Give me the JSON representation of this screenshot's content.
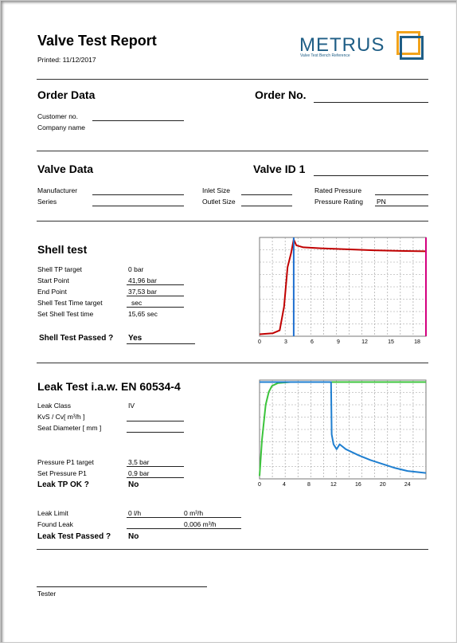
{
  "header": {
    "title": "Valve Test Report",
    "printed": "Printed: 11/12/2017",
    "logo_text": "METRUS",
    "logo_tagline": "Valve Test Bench Reference",
    "brand_color": "#1f5e86",
    "logo_square_color": "#f2a31b"
  },
  "order": {
    "title": "Order Data",
    "order_no_label": "Order No.",
    "customer_label": "Customer no.",
    "company_label": "Company name"
  },
  "valve": {
    "title": "Valve Data",
    "id_label": "Valve ID 1",
    "manufacturer_label": "Manufacturer",
    "series_label": "Series",
    "inlet_label": "Inlet Size",
    "outlet_label": "Outlet Size",
    "rated_pressure_label": "Rated Pressure",
    "pressure_rating_label": "Pressure Rating",
    "pressure_rating_value": "PN"
  },
  "shell": {
    "title": "Shell test",
    "rows": [
      {
        "label": "Shell TP target",
        "value": "0 bar"
      },
      {
        "label": "Start Point",
        "value": "41,96 bar"
      },
      {
        "label": "End Point",
        "value": "37,53 bar"
      },
      {
        "label": "Shell Test Time target",
        "value": "sec"
      },
      {
        "label": "Set Shell Test time",
        "value": "15,65 sec"
      }
    ],
    "passed_label": "Shell Test Passed ?",
    "passed_value": "Yes"
  },
  "leak": {
    "title": "Leak Test i.a.w. EN 60534-4",
    "leak_class_label": "Leak Class",
    "leak_class_value": "IV",
    "kvs_label": "KvS / Cv[    m³/h    ]",
    "seat_label": "Seat Diameter [    mm    ]",
    "p1_target_label": "Pressure P1 target",
    "p1_target_value": "3,5 bar",
    "set_p1_label": "Set Pressure P1",
    "set_p1_value": "0,9 bar",
    "tp_ok_label": "Leak TP OK ?",
    "tp_ok_value": "No",
    "limit_label": "Leak Limit",
    "limit_value1": "0 l/h",
    "limit_value2": "0 m³/h",
    "found_label": "Found Leak",
    "found_value": "0,006 m³/h",
    "passed_label": "Leak Test Passed ?",
    "passed_value": "No"
  },
  "tester_label": "Tester",
  "chart_data": [
    {
      "type": "line",
      "title": "",
      "xlabel": "",
      "ylabel": "",
      "xlim": [
        0,
        19
      ],
      "ylim": [
        0,
        50
      ],
      "xticks": [
        "0",
        "3",
        "6",
        "9",
        "12",
        "15",
        "18"
      ],
      "grid": true,
      "series": [
        {
          "color": "#c00000",
          "x": [
            0,
            1.5,
            2.3,
            2.8,
            3.2,
            3.6,
            3.9,
            4.2,
            5,
            7,
            10,
            13,
            16,
            19
          ],
          "y": [
            1,
            1.5,
            3,
            15,
            35,
            42,
            49,
            46,
            45,
            44.5,
            44,
            43.5,
            43.2,
            43
          ]
        },
        {
          "color": "#1f6fd0",
          "x": [
            3.9,
            3.9
          ],
          "y": [
            0,
            50
          ]
        },
        {
          "color": "#d4007f",
          "x": [
            19,
            19
          ],
          "y": [
            0,
            50
          ]
        }
      ]
    },
    {
      "type": "line",
      "title": "",
      "xlabel": "",
      "ylabel": "",
      "xlim": [
        0,
        27
      ],
      "ylim": [
        0,
        10
      ],
      "xticks": [
        "0",
        "4",
        "8",
        "12",
        "16",
        "20",
        "24"
      ],
      "grid": true,
      "series": [
        {
          "color": "#3cc43c",
          "x": [
            0,
            0.4,
            1,
            1.5,
            2,
            3,
            5,
            27
          ],
          "y": [
            0.3,
            4,
            7.5,
            8.8,
            9.4,
            9.7,
            9.8,
            9.8
          ]
        },
        {
          "color": "#1f7fd0",
          "x": [
            0,
            3,
            11.6,
            11.7,
            12,
            12.5,
            13,
            14,
            16,
            18,
            20,
            22,
            24,
            27
          ],
          "y": [
            9.8,
            9.8,
            9.8,
            4.5,
            3.5,
            3.0,
            3.5,
            3.0,
            2.4,
            1.9,
            1.5,
            1.1,
            0.8,
            0.6
          ]
        }
      ]
    }
  ]
}
